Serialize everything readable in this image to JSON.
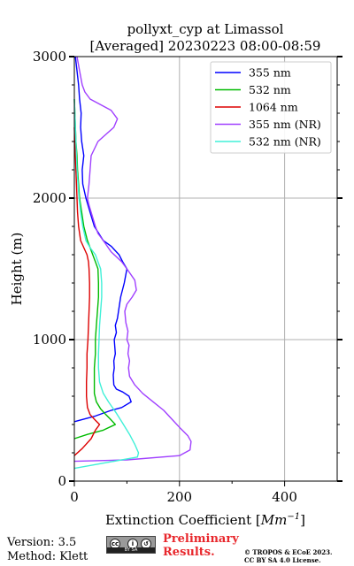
{
  "chart_data": {
    "type": "line",
    "title_line1": "pollyxt_cyp at Limassol",
    "title_line2": "[Averaged] 20230223 08:00-08:59",
    "xlabel": "Extinction Coefficient [$Mm^{-1}$]",
    "xlabel_text": "Extinction Coefficient [",
    "xlabel_unit": "Mm",
    "xlabel_sup": "−1",
    "xlabel_close": "]",
    "ylabel": "Height (m)",
    "xlim": [
      0,
      500
    ],
    "ylim": [
      0,
      3000
    ],
    "xticks": [
      "0",
      "200",
      "400"
    ],
    "yticks": [
      "0",
      "1000",
      "2000",
      "3000"
    ],
    "grid": true,
    "legend_position": "top-right",
    "series": [
      {
        "name": "355 nm",
        "color": "#0000ff",
        "points": [
          [
            0,
            420
          ],
          [
            40,
            460
          ],
          [
            70,
            500
          ],
          [
            90,
            520
          ],
          [
            108,
            560
          ],
          [
            104,
            600
          ],
          [
            92,
            630
          ],
          [
            80,
            650
          ],
          [
            75,
            680
          ],
          [
            74,
            750
          ],
          [
            76,
            800
          ],
          [
            75,
            850
          ],
          [
            78,
            900
          ],
          [
            76,
            1000
          ],
          [
            80,
            1050
          ],
          [
            78,
            1100
          ],
          [
            82,
            1150
          ],
          [
            84,
            1200
          ],
          [
            88,
            1300
          ],
          [
            95,
            1400
          ],
          [
            100,
            1500
          ],
          [
            92,
            1550
          ],
          [
            85,
            1600
          ],
          [
            70,
            1660
          ],
          [
            55,
            1700
          ],
          [
            38,
            1800
          ],
          [
            30,
            1900
          ],
          [
            22,
            2000
          ],
          [
            16,
            2100
          ],
          [
            15,
            2200
          ],
          [
            18,
            2300
          ],
          [
            14,
            2400
          ],
          [
            12,
            2500
          ],
          [
            13,
            2600
          ],
          [
            10,
            2700
          ],
          [
            8,
            2800
          ],
          [
            5,
            2900
          ],
          [
            2,
            3000
          ]
        ]
      },
      {
        "name": "532 nm",
        "color": "#00bb00",
        "points": [
          [
            0,
            300
          ],
          [
            25,
            330
          ],
          [
            55,
            360
          ],
          [
            78,
            400
          ],
          [
            68,
            440
          ],
          [
            60,
            470
          ],
          [
            50,
            510
          ],
          [
            42,
            560
          ],
          [
            38,
            620
          ],
          [
            38,
            700
          ],
          [
            38,
            800
          ],
          [
            40,
            900
          ],
          [
            40,
            1000
          ],
          [
            42,
            1100
          ],
          [
            44,
            1200
          ],
          [
            46,
            1300
          ],
          [
            46,
            1400
          ],
          [
            45,
            1500
          ],
          [
            40,
            1550
          ],
          [
            35,
            1600
          ],
          [
            25,
            1700
          ],
          [
            18,
            1800
          ],
          [
            14,
            1900
          ],
          [
            10,
            2000
          ],
          [
            8,
            2100
          ],
          [
            6,
            2200
          ],
          [
            5,
            2300
          ],
          [
            3,
            2400
          ],
          [
            2,
            2500
          ],
          [
            1,
            2600
          ],
          [
            0,
            2700
          ]
        ]
      },
      {
        "name": "1064 nm",
        "color": "#dd0000",
        "points": [
          [
            0,
            180
          ],
          [
            15,
            230
          ],
          [
            32,
            300
          ],
          [
            40,
            360
          ],
          [
            48,
            400
          ],
          [
            40,
            430
          ],
          [
            30,
            470
          ],
          [
            25,
            520
          ],
          [
            23,
            600
          ],
          [
            23,
            700
          ],
          [
            24,
            800
          ],
          [
            24,
            900
          ],
          [
            26,
            1000
          ],
          [
            27,
            1100
          ],
          [
            28,
            1200
          ],
          [
            29,
            1300
          ],
          [
            29,
            1400
          ],
          [
            28,
            1500
          ],
          [
            27,
            1550
          ],
          [
            24,
            1600
          ],
          [
            18,
            1650
          ],
          [
            12,
            1700
          ],
          [
            8,
            1800
          ],
          [
            6,
            1900
          ],
          [
            5,
            2000
          ],
          [
            4,
            2100
          ],
          [
            3,
            2200
          ],
          [
            2,
            2300
          ],
          [
            1,
            2400
          ],
          [
            0,
            2500
          ]
        ]
      },
      {
        "name": "355 nm (NR)",
        "color": "#a040ff",
        "points": [
          [
            0,
            140
          ],
          [
            100,
            150
          ],
          [
            200,
            180
          ],
          [
            220,
            220
          ],
          [
            222,
            280
          ],
          [
            216,
            320
          ],
          [
            200,
            380
          ],
          [
            185,
            440
          ],
          [
            170,
            500
          ],
          [
            150,
            560
          ],
          [
            130,
            620
          ],
          [
            115,
            680
          ],
          [
            105,
            740
          ],
          [
            103,
            800
          ],
          [
            105,
            850
          ],
          [
            102,
            900
          ],
          [
            104,
            960
          ],
          [
            100,
            1000
          ],
          [
            102,
            1060
          ],
          [
            98,
            1120
          ],
          [
            96,
            1200
          ],
          [
            100,
            1250
          ],
          [
            110,
            1300
          ],
          [
            118,
            1350
          ],
          [
            115,
            1420
          ],
          [
            100,
            1500
          ],
          [
            90,
            1550
          ],
          [
            70,
            1620
          ],
          [
            55,
            1700
          ],
          [
            45,
            1750
          ],
          [
            40,
            1800
          ],
          [
            32,
            1900
          ],
          [
            28,
            1950
          ],
          [
            25,
            2000
          ],
          [
            28,
            2100
          ],
          [
            30,
            2200
          ],
          [
            32,
            2300
          ],
          [
            45,
            2400
          ],
          [
            60,
            2450
          ],
          [
            75,
            2500
          ],
          [
            82,
            2560
          ],
          [
            70,
            2620
          ],
          [
            50,
            2660
          ],
          [
            30,
            2700
          ],
          [
            20,
            2750
          ],
          [
            15,
            2800
          ],
          [
            10,
            2900
          ],
          [
            5,
            3000
          ]
        ]
      },
      {
        "name": "532 nm (NR)",
        "color": "#40f0d8",
        "points": [
          [
            0,
            90
          ],
          [
            60,
            130
          ],
          [
            120,
            170
          ],
          [
            122,
            200
          ],
          [
            115,
            260
          ],
          [
            105,
            330
          ],
          [
            90,
            420
          ],
          [
            80,
            480
          ],
          [
            65,
            560
          ],
          [
            55,
            620
          ],
          [
            48,
            700
          ],
          [
            46,
            800
          ],
          [
            46,
            900
          ],
          [
            47,
            1000
          ],
          [
            48,
            1100
          ],
          [
            50,
            1200
          ],
          [
            52,
            1300
          ],
          [
            52,
            1400
          ],
          [
            50,
            1500
          ],
          [
            45,
            1550
          ],
          [
            40,
            1600
          ],
          [
            30,
            1650
          ],
          [
            22,
            1700
          ],
          [
            16,
            1800
          ],
          [
            12,
            1900
          ],
          [
            9,
            2000
          ],
          [
            7,
            2100
          ],
          [
            5,
            2200
          ],
          [
            4,
            2300
          ],
          [
            3,
            2400
          ],
          [
            2,
            2500
          ],
          [
            1,
            2600
          ],
          [
            0,
            2700
          ]
        ]
      }
    ]
  },
  "footer": {
    "version": "Version: 3.5",
    "method": "Method: Klett",
    "cc_label": "BY SA",
    "prelim_line1": "Preliminary",
    "prelim_line2": "Results.",
    "copyright_line1": "© TROPOS & ECoE 2023.",
    "copyright_line2": "CC BY SA 4.0 License."
  }
}
